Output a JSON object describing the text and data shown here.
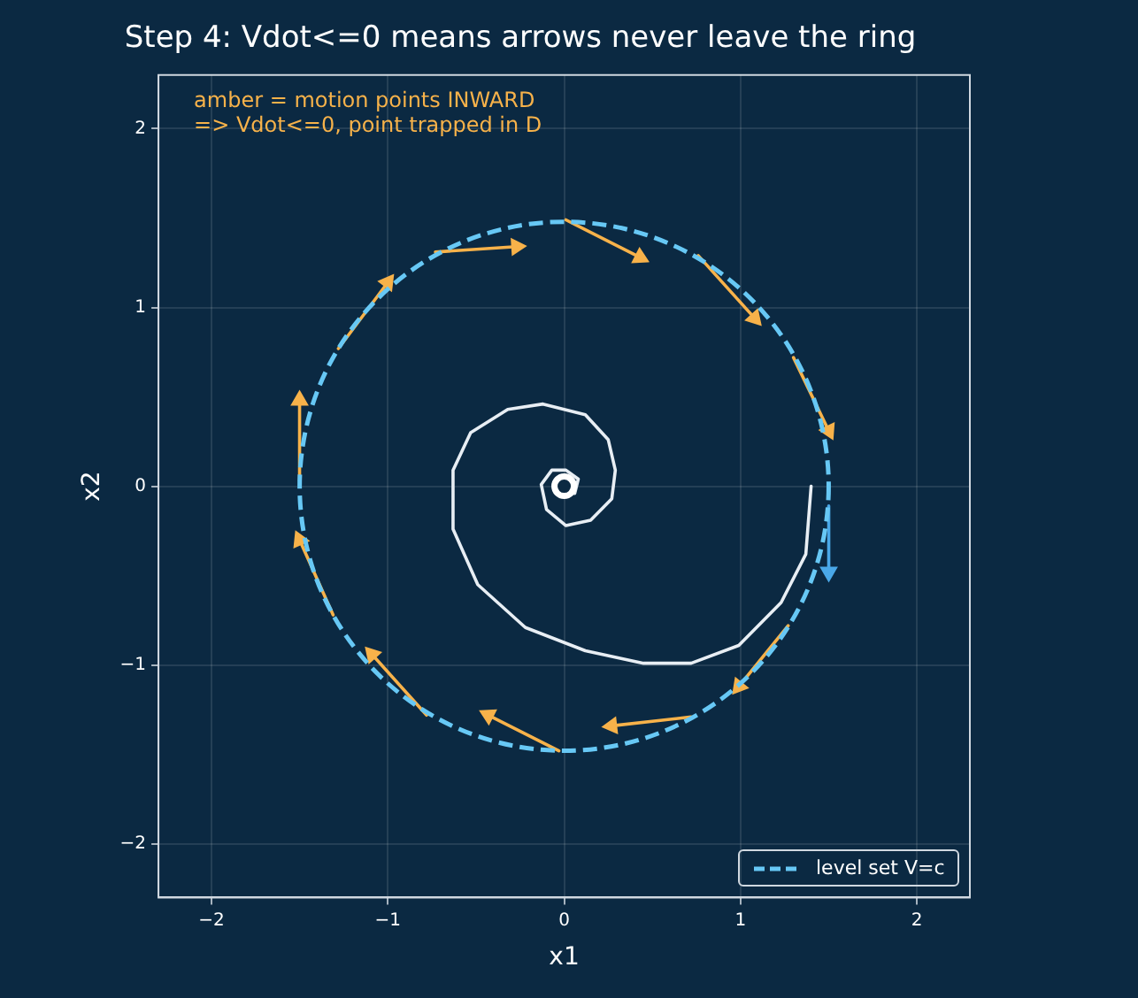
{
  "chart_data": {
    "type": "line",
    "title": "Step 4: Vdot<=0 means arrows never leave the ring",
    "xlabel": "x1",
    "ylabel": "x2",
    "xlim": [
      -2.3,
      2.3
    ],
    "ylim": [
      -2.3,
      2.3
    ],
    "xticks": [
      {
        "value": -2,
        "label": "−2"
      },
      {
        "value": -1,
        "label": "−1"
      },
      0,
      1,
      2
    ],
    "yticks": [
      {
        "value": -2,
        "label": "−2"
      },
      {
        "value": -1,
        "label": "−1"
      },
      0,
      1,
      2
    ],
    "grid": true,
    "annotations": [
      "amber = motion points INWARD",
      "=> Vdot<=0, point trapped in D",
      "level set V=c"
    ],
    "series": [
      {
        "type": "line",
        "color": "#e8eef4",
        "line_style": "solid",
        "marker": "none",
        "x": [
          1.4,
          1.37,
          1.23,
          0.99,
          0.72,
          0.45,
          0.12,
          -0.22,
          -0.49,
          -0.63,
          -0.63,
          -0.53,
          -0.32,
          -0.12,
          0.12,
          0.25,
          0.29,
          0.27,
          0.15,
          0.01,
          -0.1,
          -0.13,
          -0.07,
          0.01,
          0.08,
          0.06,
          0
        ],
        "values": [
          0,
          -0.38,
          -0.65,
          -0.89,
          -0.99,
          -0.99,
          -0.92,
          -0.79,
          -0.55,
          -0.24,
          0.09,
          0.3,
          0.43,
          0.46,
          0.4,
          0.26,
          0.09,
          -0.07,
          -0.19,
          -0.22,
          -0.13,
          0.01,
          0.09,
          0.09,
          0.04,
          -0.04,
          0
        ]
      },
      {
        "type": "line",
        "color": "#f7b24a",
        "line_style": "solid",
        "marker": "triangle",
        "x": [
          -0.73,
          -0.27,
          null,
          0.01,
          0.43,
          null,
          0.76,
          1.08,
          null,
          1.3,
          1.5,
          null,
          1.27,
          0.99,
          null,
          0.72,
          0.27,
          null,
          -0.03,
          -0.43,
          null,
          -0.78,
          -1.09,
          null,
          -1.31,
          -1.5,
          null,
          -1.5,
          -1.5,
          null,
          -1.28,
          -1.0
        ],
        "values": [
          1.31,
          1.34,
          null,
          1.49,
          1.28,
          null,
          1.29,
          0.94,
          null,
          0.72,
          0.31,
          null,
          -0.78,
          -1.12,
          null,
          -1.29,
          -1.34,
          null,
          -1.48,
          -1.28,
          null,
          -1.28,
          -0.94,
          null,
          -0.72,
          -0.3,
          null,
          0.03,
          0.48,
          null,
          0.77,
          1.14
        ]
      },
      {
        "type": "line",
        "color": "#4aa8e8",
        "line_style": "solid",
        "marker": "triangle",
        "x": [
          1.5,
          1.5
        ],
        "values": [
          -0.11,
          -0.48
        ]
      },
      {
        "type": "scatter",
        "color": "#ffffff",
        "marker": "circle",
        "x": [
          0
        ],
        "values": [
          0
        ]
      }
    ]
  }
}
